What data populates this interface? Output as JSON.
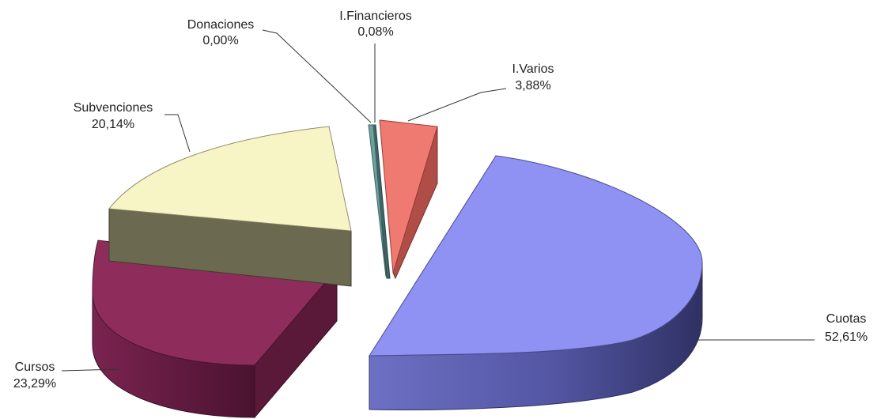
{
  "chart_data": {
    "type": "pie",
    "style": "3d-exploded",
    "legend": "none",
    "slices": [
      {
        "name": "Cuotas",
        "label": "Cuotas",
        "value_label": "52,61%",
        "value": 52.61,
        "color": "#8f91f3",
        "side_color": "#4a4d8a"
      },
      {
        "name": "Cursos",
        "label": "Cursos",
        "value_label": "23,29%",
        "value": 23.29,
        "color": "#8e2d5c",
        "side_color": "#5e1a3a"
      },
      {
        "name": "Subvenciones",
        "label": "Subvenciones",
        "value_label": "20,14%",
        "value": 20.14,
        "color": "#f7f5c6",
        "side_color": "#6b6950"
      },
      {
        "name": "Donaciones",
        "label": "Donaciones",
        "value_label": "0,00%",
        "value": 0.0,
        "color": "#6fa0a0",
        "side_color": "#3f6565"
      },
      {
        "name": "I.Financieros",
        "label": "I.Financieros",
        "value_label": "0,08%",
        "value": 0.08,
        "color": "#6fa0a0",
        "side_color": "#3f6565"
      },
      {
        "name": "I.Varios",
        "label": "I.Varios",
        "value_label": "3,88%",
        "value": 3.88,
        "color": "#ef7a72",
        "side_color": "#b04d47"
      }
    ]
  }
}
